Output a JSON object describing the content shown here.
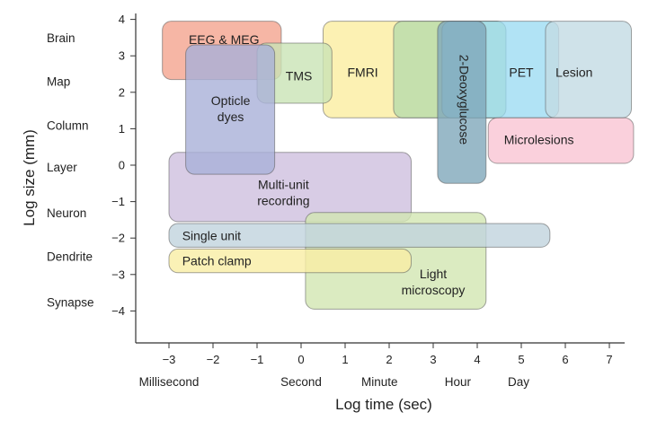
{
  "chart_data": {
    "type": "range",
    "xlabel": "Log time (sec)",
    "ylabel": "Log size (mm)",
    "xlim": [
      -3.75,
      7.35
    ],
    "ylim": [
      -4.9,
      4.2
    ],
    "x_ticks": [
      "−3",
      "−2",
      "−1",
      "0",
      "1",
      "2",
      "3",
      "4",
      "5",
      "6",
      "7"
    ],
    "x_tick_values": [
      -3,
      -2,
      -1,
      0,
      1,
      2,
      3,
      4,
      5,
      6,
      7
    ],
    "y_ticks": [
      "4",
      "3",
      "2",
      "1",
      "0",
      "−1",
      "−2",
      "−3",
      "−4"
    ],
    "y_tick_values": [
      4,
      3,
      2,
      1,
      0,
      -1,
      -2,
      -3,
      -4
    ],
    "time_scale_labels": [
      {
        "label": "Millisecond",
        "x": -3
      },
      {
        "label": "Second",
        "x": 0
      },
      {
        "label": "Minute",
        "x": 1.78
      },
      {
        "label": "Hour",
        "x": 3.56
      },
      {
        "label": "Day",
        "x": 4.94
      }
    ],
    "size_scale_labels": [
      {
        "label": "Brain",
        "y": 3.5
      },
      {
        "label": "Map",
        "y": 2.3
      },
      {
        "label": "Column",
        "y": 1.1
      },
      {
        "label": "Layer",
        "y": -0.05
      },
      {
        "label": "Neuron",
        "y": -1.3
      },
      {
        "label": "Dendrite",
        "y": -2.5
      },
      {
        "label": "Synapse",
        "y": -3.75
      }
    ],
    "regions": [
      {
        "name": "EEG & MEG",
        "x": [
          -3.15,
          -0.45
        ],
        "y": [
          2.35,
          3.95
        ],
        "color": "#f4a48e",
        "label_lines": [
          "EEG & MEG"
        ],
        "label_at": [
          -1.75,
          3.45
        ],
        "label_angle": 0
      },
      {
        "name": "FMRI",
        "x": [
          0.5,
          4.65
        ],
        "y": [
          1.3,
          3.95
        ],
        "color": "#fbeea0",
        "label_lines": [
          "FMRI"
        ],
        "label_at": [
          1.4,
          2.55
        ],
        "label_angle": 0
      },
      {
        "name": "FMRI overlap",
        "x": [
          2.1,
          4.65
        ],
        "y": [
          1.3,
          3.95
        ],
        "color": "#b6dcab",
        "label_lines": [],
        "label_at": null,
        "label_angle": 0
      },
      {
        "name": "PET",
        "x": [
          3.2,
          5.85
        ],
        "y": [
          1.3,
          3.95
        ],
        "color": "#9ddcf2",
        "label_lines": [
          "PET"
        ],
        "label_at": [
          5,
          2.55
        ],
        "label_angle": 0
      },
      {
        "name": "Lesion",
        "x": [
          5.55,
          7.5
        ],
        "y": [
          1.3,
          3.95
        ],
        "color": "#c3dbe3",
        "label_lines": [
          "Lesion"
        ],
        "label_at": [
          6.2,
          2.55
        ],
        "label_angle": 0
      },
      {
        "name": "2-Deoxyglucose",
        "x": [
          3.1,
          4.2
        ],
        "y": [
          -0.5,
          3.95
        ],
        "color": "#7fa8ba",
        "label_lines": [
          "2-Deoxyglucose"
        ],
        "label_at": [
          3.7,
          1.8
        ],
        "label_angle": 90
      },
      {
        "name": "Microlesions",
        "x": [
          4.25,
          7.55
        ],
        "y": [
          0.05,
          1.3
        ],
        "color": "#f9c4d3",
        "label_lines": [
          "Microlesions"
        ],
        "label_at": [
          5.4,
          0.7
        ],
        "label_angle": 0
      },
      {
        "name": "TMS",
        "x": [
          -1,
          0.7
        ],
        "y": [
          1.7,
          3.35
        ],
        "color": "#c9e3b5",
        "label_lines": [
          "TMS"
        ],
        "label_at": [
          -0.05,
          2.45
        ],
        "label_angle": 0
      },
      {
        "name": "Multi-unit recording",
        "x": [
          -3,
          2.5
        ],
        "y": [
          -1.55,
          0.35
        ],
        "color": "#cebfdf",
        "label_lines": [
          "Multi-unit",
          "recording"
        ],
        "label_at": [
          -0.4,
          -0.75
        ],
        "label_angle": 0
      },
      {
        "name": "Optical dyes",
        "x": [
          -2.62,
          -0.6
        ],
        "y": [
          -0.25,
          3.3
        ],
        "color": "#a9b0d8",
        "label_lines": [
          "Opticle",
          "dyes"
        ],
        "label_at": [
          -1.6,
          1.55
        ],
        "label_angle": 0
      },
      {
        "name": "Light microscopy",
        "x": [
          0.1,
          4.2
        ],
        "y": [
          -3.95,
          -1.3
        ],
        "color": "#d2e6b1",
        "label_lines": [
          "Light",
          "microscopy"
        ],
        "label_at": [
          3,
          -3.2
        ],
        "label_angle": 0
      },
      {
        "name": "Single unit",
        "x": [
          -3,
          5.65
        ],
        "y": [
          -2.25,
          -1.6
        ],
        "color": "#c0d3dd",
        "label_lines": [
          "Single unit"
        ],
        "label_at": [
          -2.7,
          -1.93
        ],
        "label_angle": 0
      },
      {
        "name": "Patch clamp",
        "x": [
          -3,
          2.5
        ],
        "y": [
          -2.95,
          -2.3
        ],
        "color": "#f9eea4",
        "label_lines": [
          "Patch clamp"
        ],
        "label_at": [
          -2.7,
          -2.62
        ],
        "label_angle": 0
      }
    ]
  }
}
